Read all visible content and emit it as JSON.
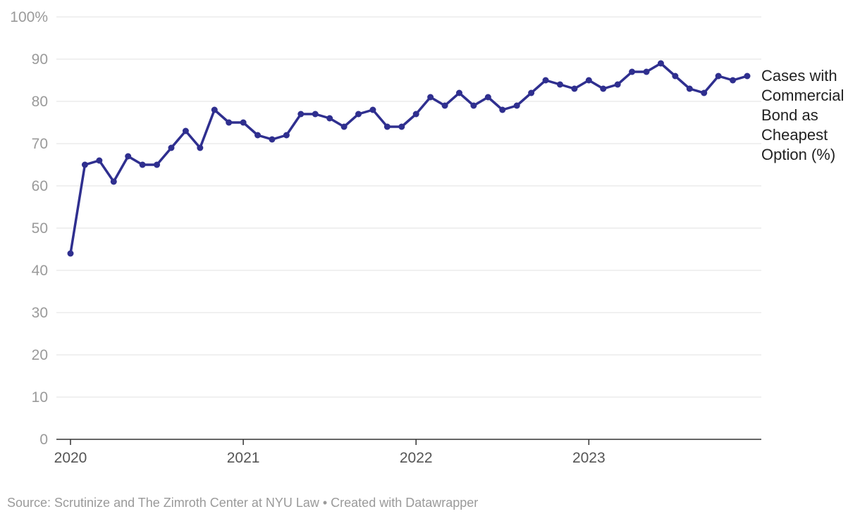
{
  "chart_data": {
    "type": "line",
    "title": "",
    "xlabel": "",
    "ylabel": "",
    "ylim": [
      0,
      100
    ],
    "y_ticks": [
      0,
      10,
      20,
      30,
      40,
      50,
      60,
      70,
      80,
      90,
      100
    ],
    "y_tick_labels": [
      "0",
      "10",
      "20",
      "30",
      "40",
      "50",
      "60",
      "70",
      "80",
      "90",
      "100%"
    ],
    "x_tick_labels": [
      "2020",
      "2021",
      "2022",
      "2023"
    ],
    "grid": true,
    "series_color": "#2f2f8f",
    "series": [
      {
        "name": "Cases with Commercial Bond as Cheapest Option (%)",
        "x": [
          "2020-01",
          "2020-02",
          "2020-03",
          "2020-04",
          "2020-05",
          "2020-06",
          "2020-07",
          "2020-08",
          "2020-09",
          "2020-10",
          "2020-11",
          "2020-12",
          "2021-01",
          "2021-02",
          "2021-03",
          "2021-04",
          "2021-05",
          "2021-06",
          "2021-07",
          "2021-08",
          "2021-09",
          "2021-10",
          "2021-11",
          "2021-12",
          "2022-01",
          "2022-02",
          "2022-03",
          "2022-04",
          "2022-05",
          "2022-06",
          "2022-07",
          "2022-08",
          "2022-09",
          "2022-10",
          "2022-11",
          "2022-12",
          "2023-01",
          "2023-02",
          "2023-03",
          "2023-04",
          "2023-05",
          "2023-06",
          "2023-07",
          "2023-08",
          "2023-09",
          "2023-10",
          "2023-11",
          "2023-12"
        ],
        "values": [
          44,
          65,
          66,
          61,
          67,
          65,
          65,
          69,
          73,
          69,
          78,
          75,
          75,
          72,
          71,
          72,
          77,
          77,
          76,
          74,
          77,
          78,
          74,
          74,
          77,
          81,
          79,
          82,
          79,
          81,
          78,
          79,
          82,
          85,
          84,
          83,
          85,
          83,
          84,
          87,
          87,
          89,
          86,
          83,
          82,
          86,
          85,
          86
        ]
      }
    ]
  },
  "series_label": "Cases with Commercial Bond as Cheapest Option (%)",
  "footer": "Source: Scrutinize and The Zimroth Center at NYU Law • Created with Datawrapper"
}
